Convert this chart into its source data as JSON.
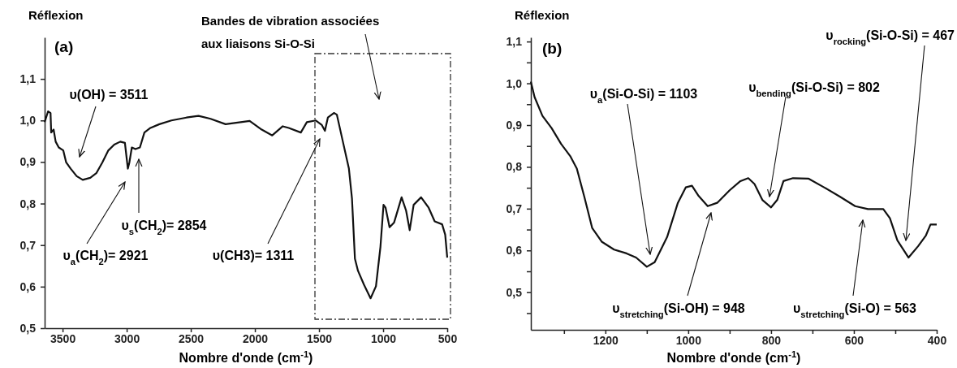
{
  "chart_data": [
    {
      "type": "line",
      "title": "(a)",
      "ylabel": "Réflexion",
      "xlabel": "Nombre d'onde (cm$^{-1}$)",
      "xlim": [
        3640,
        500
      ],
      "ylim": [
        0.5,
        1.2
      ],
      "xticks": [
        3500,
        3000,
        2500,
        2000,
        1500,
        1000,
        500
      ],
      "yticks": [
        {
          "value": 0.5,
          "label": "0,5"
        },
        {
          "value": 0.6,
          "label": "0,6"
        },
        {
          "value": 0.7,
          "label": "0,7"
        },
        {
          "value": 0.8,
          "label": "0,8"
        },
        {
          "value": 0.9,
          "label": "0,9"
        },
        {
          "value": 1.0,
          "label": "1,0"
        },
        {
          "value": 1.1,
          "label": "1,1"
        }
      ],
      "grid": false,
      "marker": "none",
      "line_style": "solid",
      "series": [
        {
          "color": "#111111",
          "x": [
            3640,
            3613,
            3594,
            3589,
            3570,
            3554,
            3530,
            3495,
            3472,
            3437,
            3390,
            3343,
            3284,
            3237,
            3190,
            3143,
            3097,
            3050,
            3014,
            2991,
            2979,
            2960,
            2932,
            2897,
            2862,
            2815,
            2745,
            2651,
            2534,
            2440,
            2346,
            2229,
            2111,
            2041,
            1947,
            1865,
            1783,
            1736,
            1642,
            1595,
            1525,
            1478,
            1454,
            1431,
            1384,
            1361,
            1314,
            1267,
            1243,
            1220,
            1196,
            1150,
            1098,
            1056,
            1021,
            997,
            981,
            950,
            915,
            856,
            821,
            793,
            762,
            704,
            645,
            598,
            540,
            516,
            500
          ],
          "values": [
            0.996,
            1.022,
            1.018,
            0.971,
            0.978,
            0.949,
            0.935,
            0.928,
            0.899,
            0.884,
            0.866,
            0.857,
            0.862,
            0.873,
            0.899,
            0.928,
            0.942,
            0.949,
            0.946,
            0.884,
            0.899,
            0.935,
            0.931,
            0.935,
            0.971,
            0.982,
            0.991,
            1.0,
            1.007,
            1.011,
            1.004,
            0.991,
            0.996,
            0.999,
            0.978,
            0.964,
            0.986,
            0.982,
            0.971,
            0.996,
            1.0,
            0.989,
            0.975,
            1.007,
            1.018,
            1.014,
            0.949,
            0.884,
            0.812,
            0.667,
            0.638,
            0.605,
            0.572,
            0.601,
            0.696,
            0.797,
            0.79,
            0.743,
            0.754,
            0.815,
            0.783,
            0.736,
            0.797,
            0.815,
            0.79,
            0.757,
            0.75,
            0.725,
            0.67
          ]
        }
      ],
      "annotations": [
        "υ(OH) = 3511",
        "υ$_{a}$(CH$_{2}$)= 2921",
        "υ$_{s}$(CH$_{2}$)= 2854",
        "υ(CH3)= 1311",
        "Bandes de vibration associées\naux liaisons Si-O-Si"
      ]
    },
    {
      "type": "line",
      "title": "(b)",
      "ylabel": "Réflexion",
      "xlabel": "Nombre d'onde (cm$^{-1}$)",
      "xlim": [
        1380,
        400
      ],
      "ylim": [
        0.41,
        1.11
      ],
      "xticks": [
        {
          "value": 1300,
          "label": null
        },
        1200,
        {
          "value": 1100,
          "label": null
        },
        1000,
        {
          "value": 900,
          "label": null
        },
        800,
        {
          "value": 700,
          "label": null
        },
        600,
        {
          "value": 500,
          "label": null
        },
        400
      ],
      "yticks": [
        {
          "value": 0.45,
          "label": null
        },
        {
          "value": 0.5,
          "label": "0,5"
        },
        {
          "value": 0.55,
          "label": null
        },
        {
          "value": 0.6,
          "label": "0,6"
        },
        {
          "value": 0.65,
          "label": null
        },
        {
          "value": 0.7,
          "label": "0,7"
        },
        {
          "value": 0.75,
          "label": null
        },
        {
          "value": 0.8,
          "label": "0,8"
        },
        {
          "value": 0.85,
          "label": null
        },
        {
          "value": 0.9,
          "label": "0,9"
        },
        {
          "value": 0.95,
          "label": null
        },
        {
          "value": 1.0,
          "label": "1,0"
        },
        {
          "value": 1.05,
          "label": null
        },
        {
          "value": 1.1,
          "label": "1,1"
        }
      ],
      "grid": false,
      "marker": "none",
      "line_style": "solid",
      "series": [
        {
          "color": "#111111",
          "x": [
            1380,
            1371,
            1352,
            1330,
            1307,
            1285,
            1269,
            1251,
            1232,
            1209,
            1179,
            1149,
            1126,
            1100,
            1081,
            1051,
            1025,
            1006,
            991,
            976,
            953,
            930,
            900,
            874,
            855,
            840,
            821,
            800,
            785,
            770,
            747,
            710,
            672,
            634,
            597,
            566,
            529,
            513,
            495,
            468,
            445,
            426,
            415,
            400
          ],
          "values": [
            1.004,
            0.967,
            0.922,
            0.893,
            0.855,
            0.826,
            0.796,
            0.729,
            0.654,
            0.621,
            0.602,
            0.593,
            0.583,
            0.561,
            0.572,
            0.632,
            0.714,
            0.751,
            0.755,
            0.732,
            0.706,
            0.714,
            0.744,
            0.766,
            0.773,
            0.759,
            0.721,
            0.703,
            0.721,
            0.766,
            0.773,
            0.772,
            0.751,
            0.729,
            0.706,
            0.699,
            0.699,
            0.677,
            0.624,
            0.583,
            0.61,
            0.636,
            0.662,
            0.662
          ]
        }
      ],
      "annotations": [
        "υ$_{a}$(Si-O-Si) = 1103",
        "υ$_{bending}$(Si-O-Si) = 802",
        "υ$_{rocking}$(Si-O-Si) = 467",
        "υ$_{stretching}$(Si-OH) = 948",
        "υ$_{stretching}$(Si-O) = 563"
      ]
    }
  ]
}
